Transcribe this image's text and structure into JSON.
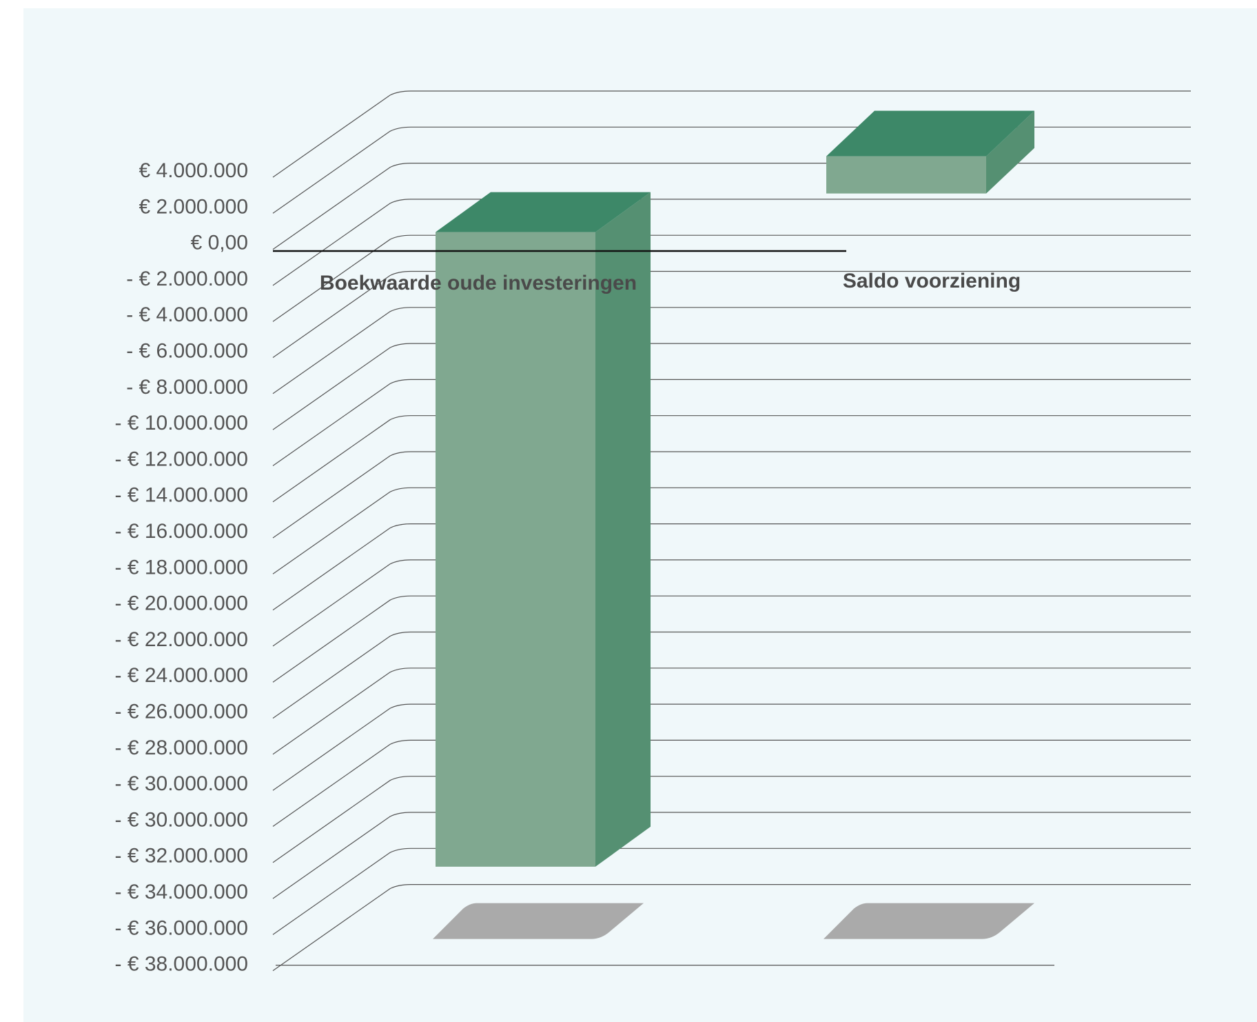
{
  "chart_data": {
    "type": "bar",
    "style": "3d-column",
    "categories": [
      "Boekwaarde oude investeringen",
      "Saldo voorziening"
    ],
    "series": [
      {
        "values": [
          -36000000,
          3000000
        ]
      }
    ],
    "y_tick_labels": [
      "€ 4.000.000",
      "€ 2.000.000",
      "€ 0,00",
      "- € 2.000.000",
      "- € 4.000.000",
      "- € 6.000.000",
      "- € 8.000.000",
      "- € 10.000.000",
      "- € 12.000.000",
      "- € 14.000.000",
      "- € 16.000.000",
      "- € 18.000.000",
      "- € 20.000.000",
      "- € 22.000.000",
      "- € 24.000.000",
      "- € 26.000.000",
      "- € 28.000.000",
      "- € 30.000.000",
      "- € 30.000.000",
      "- € 32.000.000",
      "- € 34.000.000",
      "- € 36.000.000",
      "- € 38.000.000"
    ],
    "ylim": [
      -38000000,
      4000000
    ],
    "grid": true,
    "legend": "none",
    "colors": {
      "front": "#80a890",
      "top": "#3d8868",
      "side": "#559072",
      "shadow": "#aaaaaa",
      "grid": "#555555",
      "zero_line": "#111111",
      "background": "#f0f8fa"
    }
  }
}
